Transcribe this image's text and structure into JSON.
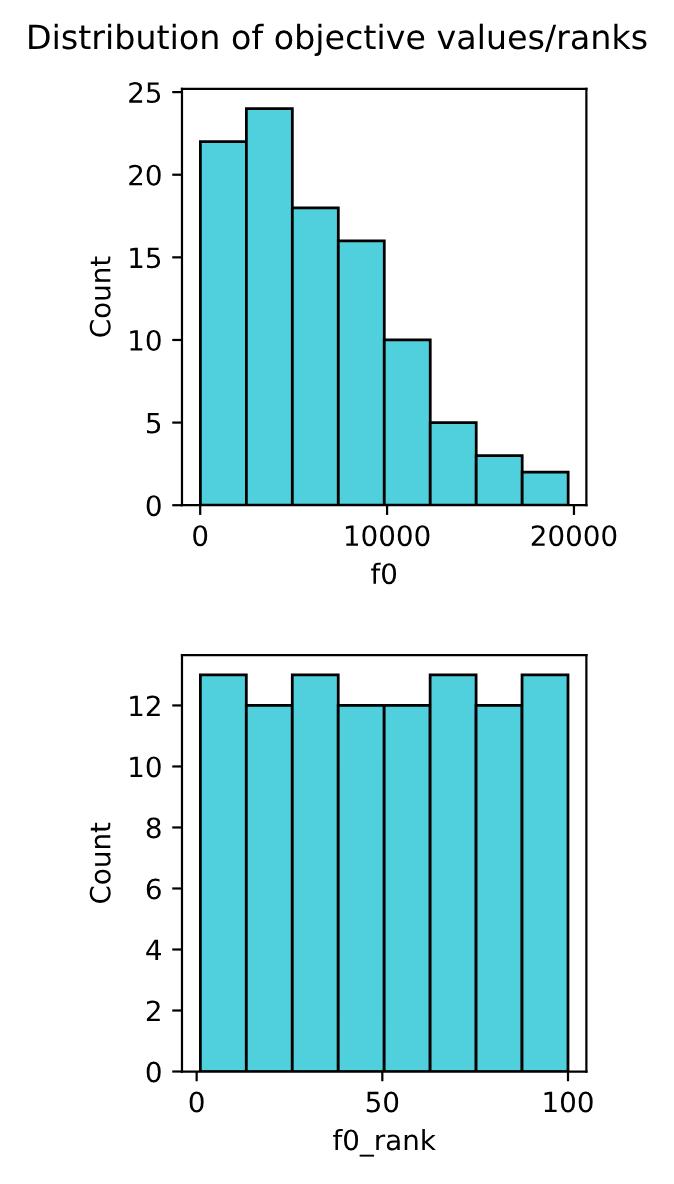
{
  "chart_data": [
    {
      "type": "histogram",
      "title": "Distribution of objective values/ranks",
      "xlabel": "f0",
      "ylabel": "Count",
      "color": "#50cfdc",
      "bins": [
        10,
        2470,
        4930,
        7390,
        9850,
        12310,
        14770,
        17230,
        19690
      ],
      "values": [
        22,
        24,
        18,
        16,
        10,
        5,
        3,
        2
      ],
      "xlim": [
        -975,
        20665
      ],
      "xticks": [
        0,
        10000,
        20000
      ],
      "ylim": [
        0,
        25.2
      ],
      "yticks": [
        0,
        5,
        10,
        15,
        20,
        25
      ],
      "grid": false,
      "legend": false
    },
    {
      "type": "histogram",
      "xlabel": "f0_rank",
      "ylabel": "Count",
      "color": "#50cfdc",
      "bins": [
        1,
        13.375,
        25.75,
        38.125,
        50.5,
        62.875,
        75.25,
        87.625,
        100
      ],
      "values": [
        13,
        12,
        13,
        12,
        12,
        13,
        12,
        13
      ],
      "xlim": [
        -3.95,
        104.95
      ],
      "xticks": [
        0,
        50,
        100
      ],
      "ylim": [
        0,
        13.65
      ],
      "yticks": [
        0,
        2,
        4,
        6,
        8,
        10,
        12
      ],
      "grid": false,
      "legend": false
    }
  ]
}
